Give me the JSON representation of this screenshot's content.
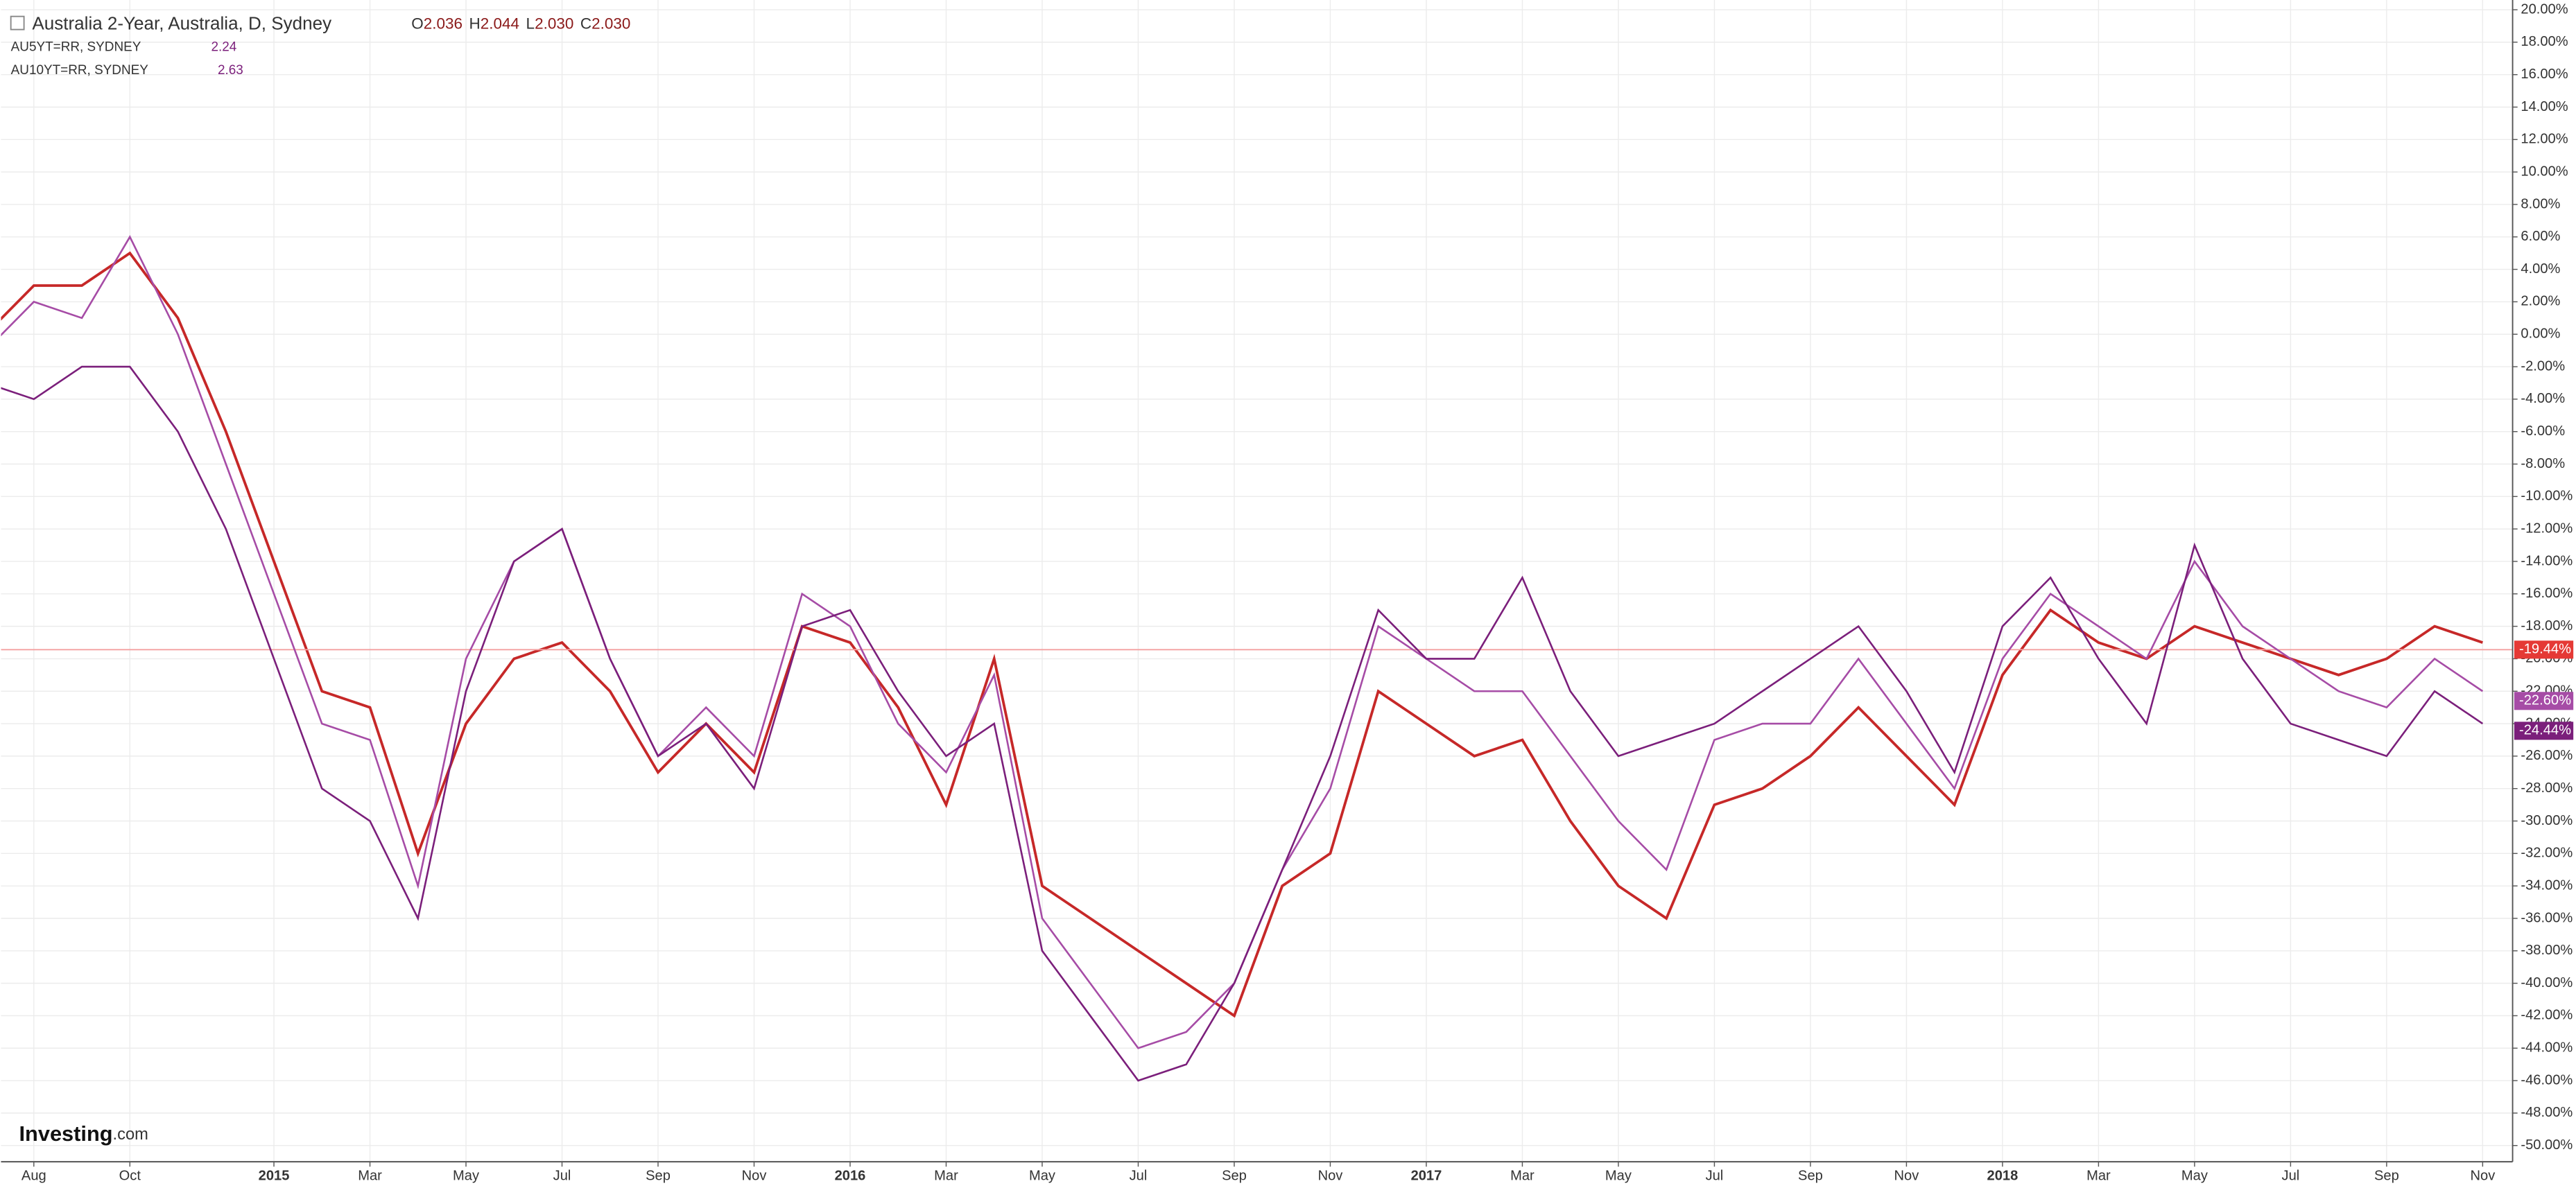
{
  "header": {
    "title": "Australia 2-Year, Australia, D, Sydney",
    "ohlc": [
      {
        "label": "O",
        "value": "2.036"
      },
      {
        "label": "H",
        "value": "2.044"
      },
      {
        "label": "L",
        "value": "2.030"
      },
      {
        "label": "C",
        "value": "2.030"
      }
    ],
    "studies": [
      {
        "name": "AU5YT=RR, SYDNEY",
        "value": "2.24"
      },
      {
        "name": "AU10YT=RR, SYDNEY",
        "value": "2.63"
      }
    ],
    "logo": "Investing",
    "logo_suffix": ".com"
  },
  "chart_data": {
    "type": "line",
    "categories": [
      null,
      "Aug",
      null,
      "Oct",
      null,
      null,
      "2015",
      null,
      "Mar",
      null,
      "May",
      null,
      "Jul",
      null,
      "Sep",
      null,
      "Nov",
      null,
      "2016",
      null,
      "Mar",
      null,
      "May",
      null,
      "Jul",
      null,
      "Sep",
      null,
      "Nov",
      null,
      "2017",
      null,
      "Mar",
      null,
      "May",
      null,
      "Jul",
      null,
      "Sep",
      null,
      "Nov",
      null,
      "2018",
      null,
      "Mar",
      null,
      "May",
      null,
      "Jul",
      null,
      "Sep",
      null,
      "Nov"
    ],
    "series": [
      {
        "name": "Australia 2-Year",
        "color": "#c62828",
        "values": [
          0,
          3,
          3,
          5,
          1,
          -6,
          -14,
          -22,
          -23,
          -32,
          -24,
          -20,
          -19,
          -22,
          -27,
          -24,
          -27,
          -18,
          -19,
          -23,
          -29,
          -20,
          -34,
          -36,
          -38,
          -40,
          -42,
          -34,
          -32,
          -22,
          -24,
          -26,
          -25,
          -30,
          -34,
          -36,
          -29,
          -28,
          -26,
          -23,
          -26,
          -29,
          -21,
          -17,
          -19,
          -20,
          -18,
          -19,
          -20,
          -21,
          -20,
          -18,
          -19
        ],
        "last": {
          "value": -19.44,
          "label": "-19.44%"
        }
      },
      {
        "name": "AU5YT=RR",
        "color": "#a64ca6",
        "values": [
          -1,
          2,
          1,
          6,
          0,
          -8,
          -16,
          -24,
          -25,
          -34,
          -20,
          -14,
          -12,
          -20,
          -26,
          -23,
          -26,
          -16,
          -18,
          -24,
          -27,
          -21,
          -36,
          -40,
          -44,
          -43,
          -40,
          -33,
          -28,
          -18,
          -20,
          -22,
          -22,
          -26,
          -30,
          -33,
          -25,
          -24,
          -24,
          -20,
          -24,
          -28,
          -20,
          -16,
          -18,
          -20,
          -14,
          -18,
          -20,
          -22,
          -23,
          -20,
          -22
        ],
        "last": {
          "value": -22.6,
          "label": "-22.60%"
        }
      },
      {
        "name": "AU10YT=RR",
        "color": "#7b1f7b",
        "values": [
          -3,
          -4,
          -2,
          -2,
          -6,
          -12,
          -20,
          -28,
          -30,
          -36,
          -22,
          -14,
          -12,
          -20,
          -26,
          -24,
          -28,
          -18,
          -17,
          -22,
          -26,
          -24,
          -38,
          -42,
          -46,
          -45,
          -40,
          -33,
          -26,
          -17,
          -20,
          -20,
          -15,
          -22,
          -26,
          -25,
          -24,
          -22,
          -20,
          -18,
          -22,
          -27,
          -18,
          -15,
          -20,
          -24,
          -13,
          -20,
          -24,
          -25,
          -26,
          -22,
          -24
        ],
        "last": {
          "value": -24.44,
          "label": "-24.44%"
        }
      }
    ],
    "ylim": [
      -51,
      20.6
    ],
    "yticks": [
      {
        "value": 20,
        "label": "20.00%"
      },
      {
        "value": 18,
        "label": "18.00%"
      },
      {
        "value": 16,
        "label": "16.00%"
      },
      {
        "value": 14,
        "label": "14.00%"
      },
      {
        "value": 12,
        "label": "12.00%"
      },
      {
        "value": 10,
        "label": "10.00%"
      },
      {
        "value": 8,
        "label": "8.00%"
      },
      {
        "value": 6,
        "label": "6.00%"
      },
      {
        "value": 4,
        "label": "4.00%"
      },
      {
        "value": 2,
        "label": "2.00%"
      },
      {
        "value": 0,
        "label": "0.00%"
      },
      {
        "value": -2,
        "label": "-2.00%"
      },
      {
        "value": -4,
        "label": "-4.00%"
      },
      {
        "value": -6,
        "label": "-6.00%"
      },
      {
        "value": -8,
        "label": "-8.00%"
      },
      {
        "value": -10,
        "label": "-10.00%"
      },
      {
        "value": -12,
        "label": "-12.00%"
      },
      {
        "value": -14,
        "label": "-14.00%"
      },
      {
        "value": -16,
        "label": "-16.00%"
      },
      {
        "value": -18,
        "label": "-18.00%"
      },
      {
        "value": -20,
        "label": "-20.00%"
      },
      {
        "value": -22,
        "label": "-22.00%"
      },
      {
        "value": -24,
        "label": "-24.00%"
      },
      {
        "value": -26,
        "label": "-26.00%"
      },
      {
        "value": -28,
        "label": "-28.00%"
      },
      {
        "value": -30,
        "label": "-30.00%"
      },
      {
        "value": -32,
        "label": "-32.00%"
      },
      {
        "value": -34,
        "label": "-34.00%"
      },
      {
        "value": -36,
        "label": "-36.00%"
      },
      {
        "value": -38,
        "label": "-38.00%"
      },
      {
        "value": -40,
        "label": "-40.00%"
      },
      {
        "value": -42,
        "label": "-42.00%"
      },
      {
        "value": -44,
        "label": "-44.00%"
      },
      {
        "value": -46,
        "label": "-46.00%"
      },
      {
        "value": -48,
        "label": "-48.00%"
      },
      {
        "value": -50,
        "label": "-50.00%"
      }
    ],
    "grid": true
  }
}
